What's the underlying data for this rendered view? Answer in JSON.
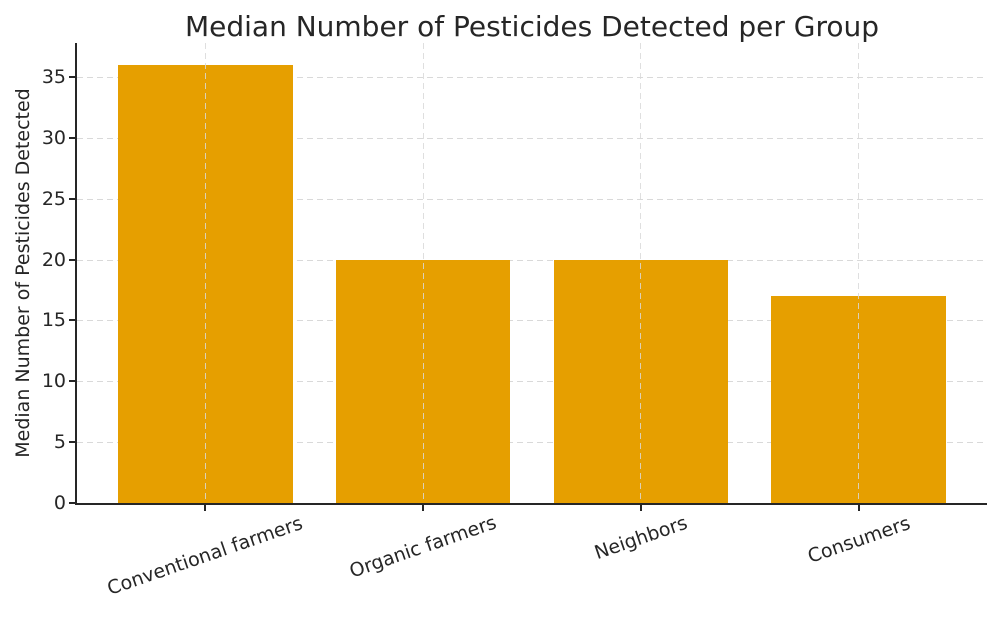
{
  "chart_data": {
    "type": "bar",
    "title": "Median Number of Pesticides Detected per Group",
    "ylabel": "Median Number of Pesticides Detected",
    "xlabel": "",
    "categories": [
      "Conventional farmers",
      "Organic farmers",
      "Neighbors",
      "Consumers"
    ],
    "values": [
      36,
      20,
      20,
      17
    ],
    "yticks": [
      0,
      5,
      10,
      15,
      20,
      25,
      30,
      35
    ],
    "ylim": [
      0,
      37.8
    ],
    "xlim": [
      -0.59,
      3.59
    ],
    "bar_width": 0.8,
    "x_tick_rotation_deg": 19,
    "grid": "dashed",
    "legend": "none",
    "colors": {
      "bar": "#E69F00",
      "grid": "#D9D9D9",
      "axis": "#262626",
      "text": "#262626",
      "background": "#FFFFFF"
    }
  }
}
